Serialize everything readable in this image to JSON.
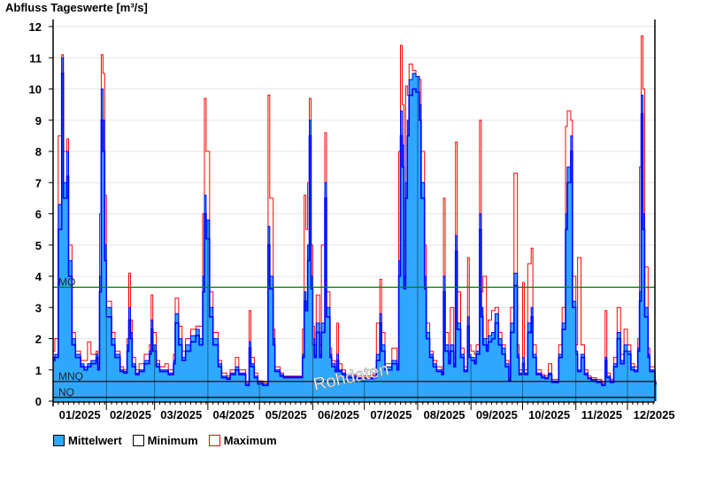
{
  "chart_data": {
    "type": "area",
    "title": "Abfluss Tageswerte [m³/s]",
    "ylabel": "Abfluss Tageswerte [m³/s]",
    "xlabel": "",
    "ylim": [
      0,
      12
    ],
    "yticks": [
      0,
      1,
      2,
      3,
      4,
      5,
      6,
      7,
      8,
      9,
      10,
      11,
      12
    ],
    "grid": true,
    "xlim_days": [
      0,
      351
    ],
    "month_starts": [
      0,
      31,
      59,
      90,
      120,
      151,
      181,
      212,
      243,
      273,
      304,
      334
    ],
    "month_labels": [
      "01/2025",
      "02/2025",
      "03/2025",
      "04/2025",
      "05/2025",
      "06/2025",
      "07/2025",
      "08/2025",
      "09/2025",
      "10/2025",
      "11/2025",
      "12/2025"
    ],
    "reference_lines": [
      {
        "label": "MQ",
        "value": 3.65,
        "color": "#008000"
      },
      {
        "label": "MNQ",
        "value": 0.63,
        "color": "#000000"
      },
      {
        "label": "NQ",
        "value": 0.12,
        "color": "#000000"
      }
    ],
    "watermark": "Rohdaten",
    "legend": [
      {
        "name": "Mittelwert",
        "color": "#2ea8ff"
      },
      {
        "name": "Minimum",
        "color": "#ffffff"
      },
      {
        "name": "Maximum",
        "color": "#ff0000"
      }
    ],
    "legend_position": "bottom-left",
    "series_columns": [
      "day",
      "min",
      "mean",
      "max"
    ],
    "points": [
      [
        0,
        1.3,
        1.4,
        1.6
      ],
      [
        1,
        1.4,
        1.5,
        2.0
      ],
      [
        3,
        5.5,
        6.3,
        8.5
      ],
      [
        5,
        10.5,
        11.0,
        11.1
      ],
      [
        6,
        6.5,
        7.0,
        8.0
      ],
      [
        8,
        7.2,
        8.0,
        8.4
      ],
      [
        9,
        4.0,
        4.5,
        5.0
      ],
      [
        11,
        1.8,
        2.0,
        2.2
      ],
      [
        13,
        1.4,
        1.5,
        1.6
      ],
      [
        16,
        1.1,
        1.2,
        1.3
      ],
      [
        18,
        1.0,
        1.1,
        1.3
      ],
      [
        20,
        1.1,
        1.2,
        1.9
      ],
      [
        22,
        1.2,
        1.3,
        1.5
      ],
      [
        25,
        1.4,
        1.5,
        1.6
      ],
      [
        26,
        1.0,
        1.1,
        1.2
      ],
      [
        27,
        3.5,
        4.0,
        6.0
      ],
      [
        28,
        9.0,
        10.0,
        11.1
      ],
      [
        29,
        8.0,
        9.0,
        10.5
      ],
      [
        30,
        4.5,
        5.0,
        6.6
      ],
      [
        31,
        2.7,
        3.0,
        3.2
      ],
      [
        34,
        1.8,
        2.0,
        2.2
      ],
      [
        36,
        1.4,
        1.5,
        1.6
      ],
      [
        39,
        0.95,
        1.0,
        1.1
      ],
      [
        41,
        0.9,
        0.95,
        1.0
      ],
      [
        43,
        1.6,
        1.8,
        2.0
      ],
      [
        44,
        2.6,
        3.0,
        4.1
      ],
      [
        45,
        2.0,
        2.2,
        2.6
      ],
      [
        46,
        1.1,
        1.2,
        1.4
      ],
      [
        48,
        0.85,
        0.9,
        1.0
      ],
      [
        50,
        0.95,
        1.0,
        1.2
      ],
      [
        53,
        1.2,
        1.3,
        1.5
      ],
      [
        56,
        1.5,
        1.6,
        1.8
      ],
      [
        57,
        2.3,
        2.6,
        3.4
      ],
      [
        58,
        1.6,
        1.8,
        2.2
      ],
      [
        60,
        1.1,
        1.2,
        1.3
      ],
      [
        62,
        0.95,
        1.0,
        1.1
      ],
      [
        65,
        0.95,
        1.0,
        1.2
      ],
      [
        67,
        0.85,
        0.9,
        1.0
      ],
      [
        70,
        1.2,
        1.3,
        1.5
      ],
      [
        71,
        2.5,
        2.8,
        3.3
      ],
      [
        73,
        1.8,
        2.0,
        2.4
      ],
      [
        75,
        1.3,
        1.4,
        1.6
      ],
      [
        77,
        1.6,
        1.8,
        2.0
      ],
      [
        80,
        1.9,
        2.1,
        2.3
      ],
      [
        83,
        2.1,
        2.3,
        2.4
      ],
      [
        85,
        1.8,
        2.0,
        2.4
      ],
      [
        87,
        3.5,
        4.0,
        6.0
      ],
      [
        88,
        6.0,
        6.6,
        9.7
      ],
      [
        89,
        5.2,
        5.8,
        8.0
      ],
      [
        91,
        2.7,
        3.0,
        3.5
      ],
      [
        93,
        1.8,
        2.0,
        2.2
      ],
      [
        96,
        1.1,
        1.2,
        1.3
      ],
      [
        98,
        0.75,
        0.8,
        0.9
      ],
      [
        101,
        0.7,
        0.75,
        0.8
      ],
      [
        103,
        0.85,
        0.9,
        1.0
      ],
      [
        106,
        1.0,
        1.1,
        1.4
      ],
      [
        108,
        0.85,
        0.9,
        1.0
      ],
      [
        112,
        0.5,
        0.55,
        0.6
      ],
      [
        114,
        1.7,
        1.9,
        2.9
      ],
      [
        115,
        1.1,
        1.2,
        1.4
      ],
      [
        117,
        0.75,
        0.8,
        0.9
      ],
      [
        119,
        0.55,
        0.6,
        0.65
      ],
      [
        122,
        0.5,
        0.55,
        0.6
      ],
      [
        124,
        0.5,
        0.55,
        0.6
      ],
      [
        125,
        5.0,
        5.6,
        9.8
      ],
      [
        126,
        3.6,
        4.0,
        6.5
      ],
      [
        128,
        1.8,
        2.0,
        2.3
      ],
      [
        129,
        0.95,
        1.0,
        1.1
      ],
      [
        132,
        0.8,
        0.85,
        0.9
      ],
      [
        134,
        0.75,
        0.78,
        0.8
      ],
      [
        139,
        0.75,
        0.78,
        0.8
      ],
      [
        142,
        0.75,
        0.78,
        0.8
      ],
      [
        145,
        1.4,
        1.5,
        2.3
      ],
      [
        146,
        3.2,
        3.5,
        6.6
      ],
      [
        147,
        2.9,
        3.2,
        5.5
      ],
      [
        148,
        4.5,
        5.0,
        7.0
      ],
      [
        149,
        8.5,
        9.0,
        9.7
      ],
      [
        150,
        3.6,
        4.0,
        5.0
      ],
      [
        151,
        1.8,
        2.0,
        2.4
      ],
      [
        152,
        1.4,
        1.5,
        1.8
      ],
      [
        153,
        2.2,
        2.5,
        3.4
      ],
      [
        155,
        1.4,
        1.5,
        1.8
      ],
      [
        156,
        2.2,
        2.5,
        5.0
      ],
      [
        158,
        6.5,
        7.0,
        8.6
      ],
      [
        159,
        2.7,
        3.0,
        3.5
      ],
      [
        161,
        1.4,
        1.5,
        1.7
      ],
      [
        162,
        1.1,
        1.2,
        1.3
      ],
      [
        164,
        0.95,
        1.0,
        1.1
      ],
      [
        165,
        1.3,
        1.5,
        2.5
      ],
      [
        166,
        0.95,
        1.0,
        1.2
      ],
      [
        168,
        0.85,
        0.9,
        1.0
      ],
      [
        170,
        0.75,
        0.8,
        0.85
      ],
      [
        176,
        0.72,
        0.75,
        0.8
      ],
      [
        181,
        0.72,
        0.75,
        0.8
      ],
      [
        186,
        0.75,
        0.8,
        0.85
      ],
      [
        188,
        1.3,
        1.5,
        2.5
      ],
      [
        190,
        2.5,
        2.8,
        3.9
      ],
      [
        191,
        1.6,
        1.8,
        2.2
      ],
      [
        193,
        1.0,
        1.1,
        1.2
      ],
      [
        195,
        1.0,
        1.1,
        1.2
      ],
      [
        197,
        1.2,
        1.3,
        1.7
      ],
      [
        200,
        1.0,
        1.1,
        1.2
      ],
      [
        201,
        4.0,
        4.5,
        8.0
      ],
      [
        202,
        8.5,
        9.3,
        11.4
      ],
      [
        203,
        7.5,
        8.2,
        9.5
      ],
      [
        204,
        3.6,
        4.0,
        5.0
      ],
      [
        205,
        6.5,
        7.0,
        10.1
      ],
      [
        206,
        8.5,
        9.0,
        9.8
      ],
      [
        207,
        9.8,
        10.3,
        10.8
      ],
      [
        209,
        10.0,
        10.5,
        10.6
      ],
      [
        211,
        9.9,
        10.4,
        10.4
      ],
      [
        213,
        9.0,
        9.5,
        10.3
      ],
      [
        214,
        6.5,
        7.0,
        8.0
      ],
      [
        216,
        3.6,
        4.0,
        5.0
      ],
      [
        217,
        2.0,
        2.2,
        2.5
      ],
      [
        219,
        1.4,
        1.5,
        1.6
      ],
      [
        221,
        1.1,
        1.2,
        1.3
      ],
      [
        223,
        0.95,
        1.0,
        1.1
      ],
      [
        226,
        0.85,
        0.9,
        0.95
      ],
      [
        227,
        3.5,
        4.0,
        6.5
      ],
      [
        228,
        1.6,
        1.8,
        2.2
      ],
      [
        230,
        1.2,
        1.3,
        1.5
      ],
      [
        231,
        1.6,
        1.8,
        3.0
      ],
      [
        233,
        1.1,
        1.2,
        1.4
      ],
      [
        234,
        4.8,
        5.3,
        8.3
      ],
      [
        235,
        2.3,
        2.5,
        3.5
      ],
      [
        237,
        1.4,
        1.5,
        1.7
      ],
      [
        239,
        0.95,
        1.0,
        1.1
      ],
      [
        241,
        2.4,
        2.7,
        4.6
      ],
      [
        242,
        1.4,
        1.5,
        1.8
      ],
      [
        243,
        1.3,
        1.4,
        1.6
      ],
      [
        245,
        1.2,
        1.3,
        1.5
      ],
      [
        246,
        1.5,
        1.6,
        1.8
      ],
      [
        248,
        5.5,
        6.0,
        9.0
      ],
      [
        249,
        2.7,
        3.0,
        3.5
      ],
      [
        250,
        1.8,
        2.0,
        4.0
      ],
      [
        252,
        1.6,
        1.8,
        2.0
      ],
      [
        253,
        1.9,
        2.1,
        2.6
      ],
      [
        255,
        2.0,
        2.2,
        2.9
      ],
      [
        257,
        2.5,
        2.8,
        3.0
      ],
      [
        259,
        1.8,
        2.0,
        2.2
      ],
      [
        261,
        1.5,
        1.7,
        1.8
      ],
      [
        263,
        1.1,
        1.2,
        1.3
      ],
      [
        265,
        0.65,
        0.7,
        0.75
      ],
      [
        266,
        2.2,
        2.5,
        3.0
      ],
      [
        268,
        3.7,
        4.1,
        7.3
      ],
      [
        270,
        1.4,
        1.5,
        1.8
      ],
      [
        271,
        0.85,
        0.9,
        1.0
      ],
      [
        273,
        1.2,
        1.4,
        3.8
      ],
      [
        274,
        0.85,
        0.9,
        1.0
      ],
      [
        276,
        2.2,
        2.5,
        4.4
      ],
      [
        278,
        2.7,
        3.0,
        4.9
      ],
      [
        279,
        1.4,
        1.5,
        1.8
      ],
      [
        281,
        0.85,
        0.9,
        1.0
      ],
      [
        284,
        0.75,
        0.8,
        0.85
      ],
      [
        286,
        0.72,
        0.75,
        0.8
      ],
      [
        288,
        0.85,
        0.9,
        1.2
      ],
      [
        290,
        0.6,
        0.65,
        0.7
      ],
      [
        292,
        0.6,
        0.65,
        0.7
      ],
      [
        294,
        1.4,
        1.5,
        1.8
      ],
      [
        296,
        2.3,
        2.5,
        3.0
      ],
      [
        298,
        5.5,
        6.0,
        8.8
      ],
      [
        299,
        7.0,
        7.5,
        9.3
      ],
      [
        301,
        8.0,
        8.5,
        9.0
      ],
      [
        302,
        3.0,
        3.2,
        4.0
      ],
      [
        304,
        1.5,
        1.6,
        1.8
      ],
      [
        305,
        0.95,
        1.0,
        4.6
      ],
      [
        307,
        1.4,
        1.5,
        1.8
      ],
      [
        309,
        0.85,
        0.9,
        1.0
      ],
      [
        311,
        0.72,
        0.75,
        0.8
      ],
      [
        313,
        0.65,
        0.7,
        0.75
      ],
      [
        316,
        0.6,
        0.65,
        0.7
      ],
      [
        319,
        0.5,
        0.55,
        0.6
      ],
      [
        321,
        1.3,
        1.4,
        2.9
      ],
      [
        322,
        0.75,
        0.8,
        0.9
      ],
      [
        324,
        0.6,
        0.65,
        0.7
      ],
      [
        326,
        1.1,
        1.2,
        1.4
      ],
      [
        328,
        2.0,
        2.2,
        3.0
      ],
      [
        330,
        1.2,
        1.3,
        1.5
      ],
      [
        332,
        1.6,
        1.8,
        2.3
      ],
      [
        334,
        1.5,
        1.6,
        1.8
      ],
      [
        336,
        1.0,
        1.1,
        1.2
      ],
      [
        338,
        0.95,
        1.0,
        1.1
      ],
      [
        340,
        1.6,
        1.7,
        2.0
      ],
      [
        341,
        3.2,
        3.5,
        7.5
      ],
      [
        342,
        9.2,
        9.8,
        11.7
      ],
      [
        343,
        5.5,
        6.0,
        10.0
      ],
      [
        344,
        2.7,
        3.0,
        4.3
      ],
      [
        346,
        1.4,
        1.5,
        1.7
      ],
      [
        347,
        0.95,
        1.0,
        1.1
      ],
      [
        350,
        0.55,
        0.6,
        0.65
      ]
    ]
  }
}
